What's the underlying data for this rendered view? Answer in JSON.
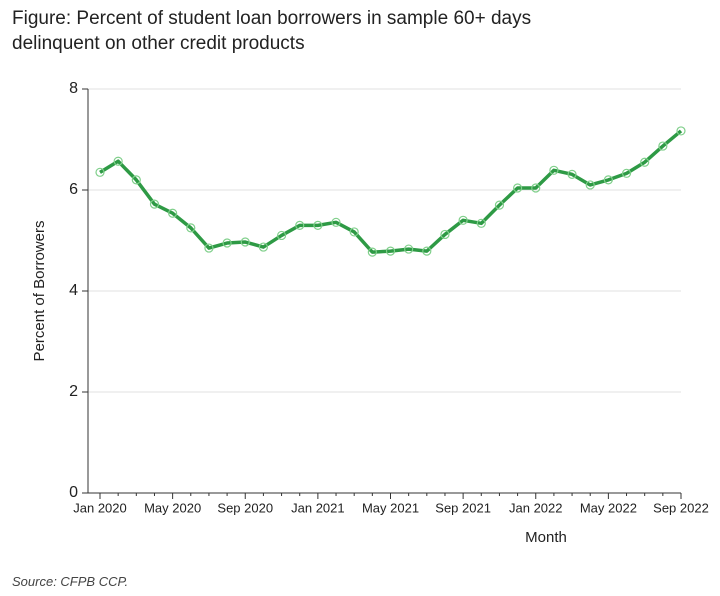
{
  "chart_data": {
    "type": "line",
    "title": "Figure: Percent of student loan borrowers in sample 60+ days delinquent on other credit products",
    "x_label": "Month",
    "y_label": "Percent of Borrowers",
    "source": "Source: CFPB CCP.",
    "categories": [
      "Jan 2020",
      null,
      null,
      null,
      "May 2020",
      null,
      null,
      null,
      "Sep 2020",
      null,
      null,
      null,
      "Jan 2021",
      null,
      null,
      null,
      "May 2021",
      null,
      null,
      null,
      "Sep 2021",
      null,
      null,
      null,
      "Jan 2022",
      null,
      null,
      null,
      "May 2022",
      null,
      null,
      null,
      "Sep 2022"
    ],
    "series": [
      {
        "name": "Percent of Borrowers",
        "color": "#2e9a45",
        "values": [
          6.35,
          6.57,
          6.2,
          5.72,
          5.54,
          5.25,
          4.85,
          4.95,
          4.97,
          4.87,
          5.1,
          5.3,
          5.3,
          5.36,
          5.17,
          4.77,
          4.79,
          4.83,
          4.79,
          5.12,
          5.4,
          5.34,
          5.7,
          6.04,
          6.04,
          6.39,
          6.31,
          6.1,
          6.2,
          6.33,
          6.55,
          6.87,
          7.17
        ]
      }
    ],
    "ylim": [
      0,
      8
    ],
    "yticks": [
      0,
      2,
      4,
      6,
      8
    ],
    "grid": true
  }
}
